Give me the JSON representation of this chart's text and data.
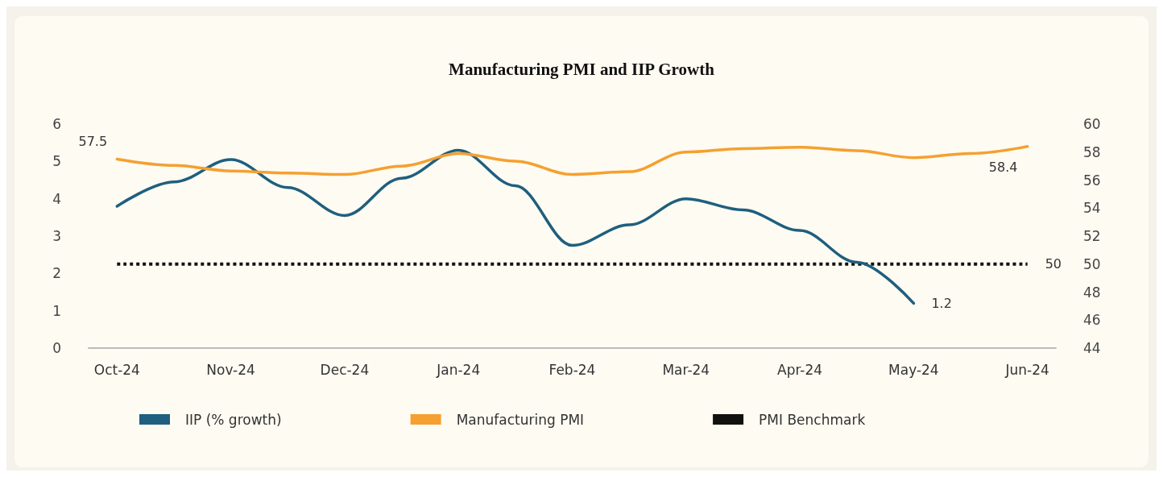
{
  "chart_data": {
    "type": "line",
    "title": "Manufacturing PMI and IIP Growth",
    "categories": [
      "Oct-24",
      null,
      "Nov-24",
      null,
      "Dec-24",
      null,
      "Jan-24",
      null,
      "Feb-24",
      null,
      "Mar-24",
      null,
      "Apr-24",
      null,
      "May-24",
      null,
      "Jun-24"
    ],
    "ylim": [
      0,
      6
    ],
    "yticks": [
      0,
      1,
      2,
      3,
      4,
      5,
      6
    ],
    "y2lim": [
      44,
      60
    ],
    "y2ticks": [
      44,
      46,
      48,
      50,
      52,
      54,
      56,
      58,
      60
    ],
    "series": [
      {
        "name": "IIP (% growth)",
        "color": "#1f5f7f",
        "values": [
          3.8,
          4.45,
          5.05,
          4.3,
          3.55,
          4.55,
          5.3,
          4.35,
          2.75,
          3.3,
          4.0,
          3.7,
          3.15,
          2.3,
          1.2,
          null,
          null
        ],
        "value_labels": [
          null,
          null,
          null,
          null,
          null,
          null,
          null,
          null,
          null,
          null,
          null,
          null,
          null,
          null,
          "1.2",
          null,
          null
        ]
      },
      {
        "name": "Manufacturing PMI",
        "color": "#f5a030",
        "axis": "y2",
        "values": [
          57.5,
          57.05,
          56.65,
          56.5,
          56.4,
          57.0,
          57.9,
          57.35,
          56.4,
          56.6,
          58.0,
          58.25,
          58.35,
          58.1,
          57.6,
          57.9,
          58.4
        ],
        "value_labels": [
          "57.5",
          null,
          null,
          null,
          null,
          null,
          null,
          null,
          null,
          null,
          null,
          null,
          null,
          null,
          null,
          null,
          "58.4"
        ]
      },
      {
        "name": "PMI Benchmark",
        "color": "#111111",
        "axis": "y2",
        "line_style": "dotted",
        "values": [
          50,
          50,
          50,
          50,
          50,
          50,
          50,
          50,
          50,
          50,
          50,
          50,
          50,
          50,
          50,
          50,
          50
        ],
        "value_labels": [
          null,
          null,
          null,
          null,
          null,
          null,
          null,
          null,
          null,
          null,
          null,
          null,
          null,
          null,
          null,
          null,
          "50"
        ]
      }
    ],
    "marker": "none",
    "line_style": "solid",
    "grid": false,
    "legend": "bottom"
  }
}
